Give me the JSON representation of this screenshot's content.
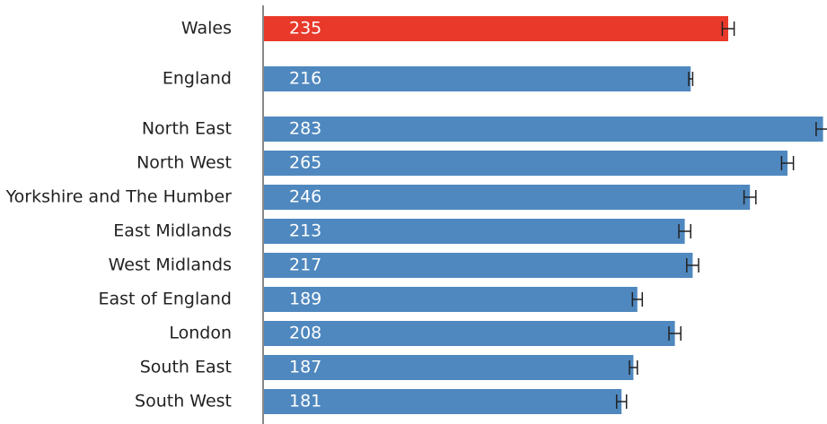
{
  "chart_data": {
    "type": "bar",
    "orientation": "horizontal",
    "categories": [
      "Wales",
      "England",
      "North East",
      "North West",
      "Yorkshire and The Humber",
      "East Midlands",
      "West Midlands",
      "East of England",
      "London",
      "South East",
      "South West"
    ],
    "values": [
      235,
      216,
      283,
      265,
      246,
      213,
      217,
      189,
      208,
      187,
      181
    ],
    "errors": [
      3,
      1,
      3.5,
      3,
      3,
      3,
      3,
      2.5,
      3,
      2,
      2.5
    ],
    "colors": [
      "#e8392a",
      "#4f88bf",
      "#4f88bf",
      "#4f88bf",
      "#4f88bf",
      "#4f88bf",
      "#4f88bf",
      "#4f88bf",
      "#4f88bf",
      "#4f88bf",
      "#4f88bf"
    ],
    "xlim": [
      0,
      285
    ]
  }
}
